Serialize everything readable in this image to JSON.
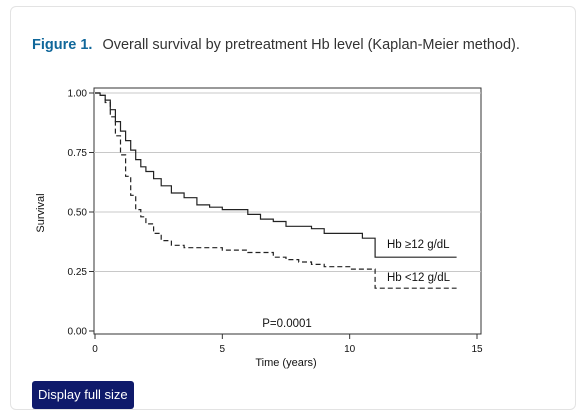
{
  "figure": {
    "label": "Figure 1.",
    "caption": "Overall survival by pretreatment Hb level (Kaplan-Meier method)."
  },
  "button": {
    "display_full_size": "Display full size"
  },
  "colors": {
    "accent": "#10679a",
    "button_bg": "#0f1a6b",
    "line": "#222222",
    "grid": "#c8c8c8"
  },
  "chart_data": {
    "type": "line",
    "xlabel": "Time (years)",
    "ylabel": "Survival",
    "xlim": [
      0,
      15
    ],
    "ylim": [
      0,
      1
    ],
    "x_ticks": [
      0,
      5,
      10,
      15
    ],
    "x_tick_labels": [
      "0",
      "5",
      "10",
      "15"
    ],
    "y_ticks": [
      0,
      0.25,
      0.5,
      0.75,
      1
    ],
    "y_tick_labels": [
      "0.00",
      "0.25",
      "0.50",
      "0.75",
      "1.00"
    ],
    "grid": "horizontal",
    "annotation": "P=0.0001",
    "series": [
      {
        "name": "Hb ≥12 g/dL",
        "style": "solid",
        "x": [
          0,
          0.2,
          0.4,
          0.6,
          0.8,
          1.0,
          1.2,
          1.4,
          1.6,
          1.8,
          2.0,
          2.3,
          2.6,
          3.0,
          3.5,
          4.0,
          4.5,
          5.0,
          6.0,
          6.5,
          7.0,
          7.5,
          8.5,
          9.0,
          10.5,
          11.0,
          14.2
        ],
        "y": [
          1.0,
          0.99,
          0.97,
          0.93,
          0.88,
          0.84,
          0.8,
          0.76,
          0.72,
          0.69,
          0.67,
          0.64,
          0.61,
          0.58,
          0.56,
          0.53,
          0.52,
          0.51,
          0.49,
          0.47,
          0.46,
          0.44,
          0.43,
          0.41,
          0.39,
          0.31,
          0.31
        ]
      },
      {
        "name": "Hb <12 g/dL",
        "style": "dashed",
        "x": [
          0,
          0.2,
          0.4,
          0.6,
          0.8,
          1.0,
          1.2,
          1.4,
          1.6,
          1.8,
          2.0,
          2.3,
          2.6,
          3.0,
          3.5,
          4.0,
          5.0,
          6.0,
          7.0,
          7.5,
          8.0,
          8.5,
          9.0,
          10.0,
          11.0,
          14.2
        ],
        "y": [
          1.0,
          0.99,
          0.96,
          0.9,
          0.82,
          0.74,
          0.65,
          0.57,
          0.51,
          0.48,
          0.45,
          0.41,
          0.38,
          0.36,
          0.35,
          0.35,
          0.34,
          0.33,
          0.31,
          0.3,
          0.29,
          0.28,
          0.27,
          0.26,
          0.18,
          0.18
        ]
      }
    ]
  }
}
